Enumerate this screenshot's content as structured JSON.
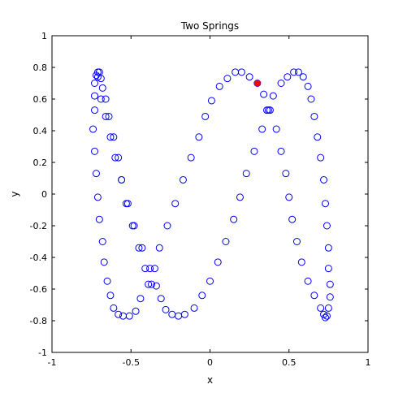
{
  "chart_data": {
    "type": "scatter",
    "title": "Two Springs",
    "xlabel": "x",
    "ylabel": "y",
    "xlim": [
      -1,
      1
    ],
    "ylim": [
      -1,
      1
    ],
    "xticks": [
      -1,
      -0.5,
      0,
      0.5,
      1
    ],
    "yticks": [
      -1,
      -0.8,
      -0.6,
      -0.4,
      -0.2,
      0,
      0.2,
      0.4,
      0.6,
      0.8,
      1
    ],
    "xtick_labels": [
      "-1",
      "-0.5",
      "0",
      "0.5",
      "1"
    ],
    "ytick_labels": [
      "-1",
      "-0.8",
      "-0.6",
      "-0.4",
      "-0.2",
      "0",
      "0.2",
      "0.4",
      "0.6",
      "0.8",
      "1"
    ],
    "grid": false,
    "series": [
      {
        "marker": "open-circle",
        "color": "#0000ff",
        "points": [
          [
            -0.73,
            0.62
          ],
          [
            -0.73,
            0.7
          ],
          [
            -0.72,
            0.75
          ],
          [
            -0.71,
            0.77
          ],
          [
            -0.7,
            0.77
          ],
          [
            -0.69,
            0.73
          ],
          [
            -0.68,
            0.67
          ],
          [
            -0.66,
            0.6
          ],
          [
            -0.64,
            0.49
          ],
          [
            -0.61,
            0.36
          ],
          [
            -0.58,
            0.23
          ],
          [
            -0.56,
            0.09
          ],
          [
            -0.53,
            -0.06
          ],
          [
            -0.49,
            -0.2
          ],
          [
            -0.45,
            -0.34
          ],
          [
            -0.41,
            -0.47
          ],
          [
            -0.39,
            -0.57
          ],
          [
            -0.37,
            -0.57
          ],
          [
            -0.35,
            -0.47
          ],
          [
            -0.32,
            -0.34
          ],
          [
            -0.27,
            -0.2
          ],
          [
            -0.22,
            -0.06
          ],
          [
            -0.17,
            0.09
          ],
          [
            -0.12,
            0.23
          ],
          [
            -0.07,
            0.36
          ],
          [
            -0.03,
            0.49
          ],
          [
            0.01,
            0.59
          ],
          [
            0.06,
            0.68
          ],
          [
            0.11,
            0.73
          ],
          [
            0.16,
            0.77
          ],
          [
            0.2,
            0.77
          ],
          [
            0.25,
            0.74
          ],
          [
            0.3,
            0.7
          ],
          [
            0.34,
            0.63
          ],
          [
            0.37,
            0.53
          ],
          [
            0.38,
            0.53
          ],
          [
            0.42,
            0.41
          ],
          [
            0.45,
            0.27
          ],
          [
            0.48,
            0.13
          ],
          [
            0.5,
            -0.02
          ],
          [
            0.52,
            -0.16
          ],
          [
            0.55,
            -0.3
          ],
          [
            0.58,
            -0.43
          ],
          [
            0.62,
            -0.55
          ],
          [
            0.66,
            -0.64
          ],
          [
            0.7,
            -0.72
          ],
          [
            0.72,
            -0.76
          ],
          [
            0.73,
            -0.78
          ],
          [
            0.74,
            -0.77
          ],
          [
            0.75,
            -0.72
          ],
          [
            0.76,
            -0.65
          ],
          [
            0.76,
            -0.57
          ],
          [
            0.75,
            -0.47
          ],
          [
            0.75,
            -0.34
          ],
          [
            0.74,
            -0.2
          ],
          [
            0.73,
            -0.06
          ],
          [
            0.72,
            0.09
          ],
          [
            0.7,
            0.23
          ],
          [
            0.68,
            0.36
          ],
          [
            0.66,
            0.49
          ],
          [
            0.64,
            0.6
          ],
          [
            0.62,
            0.68
          ],
          [
            0.59,
            0.74
          ],
          [
            0.56,
            0.77
          ],
          [
            0.53,
            0.77
          ],
          [
            0.49,
            0.74
          ],
          [
            0.45,
            0.7
          ],
          [
            0.4,
            0.62
          ],
          [
            0.36,
            0.53
          ],
          [
            0.33,
            0.41
          ],
          [
            0.28,
            0.27
          ],
          [
            0.23,
            0.13
          ],
          [
            0.19,
            -0.02
          ],
          [
            0.15,
            -0.16
          ],
          [
            0.1,
            -0.3
          ],
          [
            0.05,
            -0.43
          ],
          [
            0.0,
            -0.55
          ],
          [
            -0.05,
            -0.64
          ],
          [
            -0.1,
            -0.72
          ],
          [
            -0.16,
            -0.76
          ],
          [
            -0.2,
            -0.77
          ],
          [
            -0.24,
            -0.76
          ],
          [
            -0.28,
            -0.73
          ],
          [
            -0.31,
            -0.66
          ],
          [
            -0.34,
            -0.58
          ],
          [
            -0.38,
            -0.47
          ],
          [
            -0.43,
            -0.34
          ],
          [
            -0.48,
            -0.2
          ],
          [
            -0.52,
            -0.06
          ],
          [
            -0.56,
            0.09
          ],
          [
            -0.6,
            0.23
          ],
          [
            -0.63,
            0.36
          ],
          [
            -0.66,
            0.49
          ],
          [
            -0.69,
            0.6
          ],
          [
            -0.71,
            0.74
          ],
          [
            -0.73,
            0.53
          ],
          [
            -0.74,
            0.41
          ],
          [
            -0.73,
            0.27
          ],
          [
            -0.72,
            0.13
          ],
          [
            -0.71,
            -0.02
          ],
          [
            -0.7,
            -0.16
          ],
          [
            -0.68,
            -0.3
          ],
          [
            -0.67,
            -0.43
          ],
          [
            -0.65,
            -0.55
          ],
          [
            -0.63,
            -0.64
          ],
          [
            -0.61,
            -0.72
          ],
          [
            -0.58,
            -0.76
          ],
          [
            -0.55,
            -0.77
          ],
          [
            -0.51,
            -0.77
          ],
          [
            -0.47,
            -0.74
          ],
          [
            -0.44,
            -0.66
          ]
        ]
      },
      {
        "marker": "filled-circle",
        "color": "#ff0000",
        "points": [
          [
            0.3,
            0.7
          ]
        ]
      }
    ]
  }
}
